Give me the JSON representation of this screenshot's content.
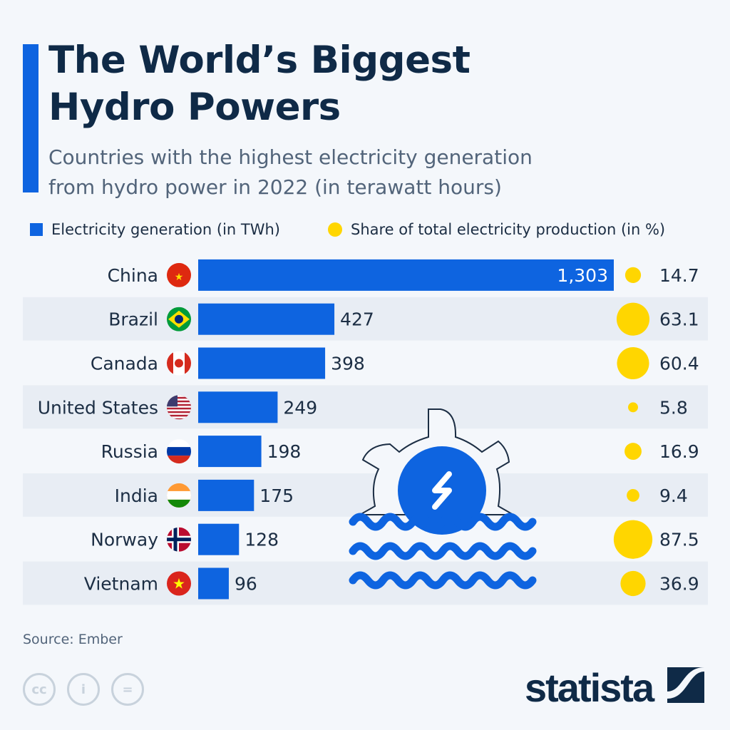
{
  "title_line1": "The World’s Biggest",
  "title_line2": "Hydro Powers",
  "subtitle_line1": "Countries with the highest electricity generation",
  "subtitle_line2": "from hydro power in 2022 (in terawatt hours)",
  "legend": {
    "generation": "Electricity generation (in TWh)",
    "share": "Share of total electricity production (in %)"
  },
  "colors": {
    "bar": "#0e64e0",
    "dot": "#ffd600",
    "row_shade": "#e8edf4"
  },
  "chart_data": {
    "type": "bar",
    "orientation": "horizontal",
    "categories": [
      "China",
      "Brazil",
      "Canada",
      "United States",
      "Russia",
      "India",
      "Norway",
      "Vietnam"
    ],
    "series": [
      {
        "name": "Electricity generation (in TWh)",
        "values": [
          1303,
          427,
          398,
          249,
          198,
          175,
          128,
          96
        ],
        "labels": [
          "1,303",
          "427",
          "398",
          "249",
          "198",
          "175",
          "128",
          "96"
        ]
      },
      {
        "name": "Share of total electricity production (in %)",
        "values": [
          14.7,
          63.1,
          60.4,
          5.8,
          16.9,
          9.4,
          87.5,
          36.9
        ],
        "labels": [
          "14.7",
          "63.1",
          "60.4",
          "5.8",
          "16.9",
          "9.4",
          "87.5",
          "36.9"
        ]
      }
    ],
    "flags": [
      "china-flag",
      "brazil-flag",
      "canada-flag",
      "usa-flag",
      "russia-flag",
      "india-flag",
      "norway-flag",
      "vietnam-flag"
    ]
  },
  "source": "Source: Ember",
  "logo": "statista"
}
